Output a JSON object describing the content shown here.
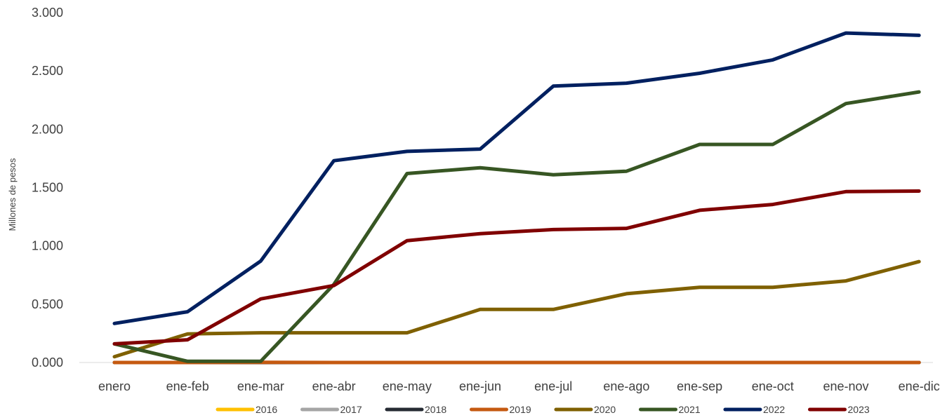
{
  "chart_data": {
    "type": "line",
    "title": "",
    "xlabel": "",
    "ylabel": "Millones de pesos",
    "ylim": [
      0,
      3
    ],
    "yticks": [
      "0.000",
      "0.500",
      "1.000",
      "1.500",
      "2.000",
      "2.500",
      "3.000"
    ],
    "categories": [
      "enero",
      "ene-feb",
      "ene-mar",
      "ene-abr",
      "ene-may",
      "ene-jun",
      "ene-jul",
      "ene-ago",
      "ene-sep",
      "ene-oct",
      "ene-nov",
      "ene-dic"
    ],
    "legend_position": "bottom",
    "grid": false,
    "series": [
      {
        "name": "2016",
        "color": "#FFC000",
        "values": [
          0,
          0,
          0,
          0,
          0,
          0,
          0,
          0,
          0,
          0,
          0,
          0
        ]
      },
      {
        "name": "2017",
        "color": "#A5A5A5",
        "values": [
          0,
          0,
          0,
          0,
          0,
          0,
          0,
          0,
          0,
          0,
          0,
          0
        ]
      },
      {
        "name": "2018",
        "color": "#262B33",
        "values": [
          0,
          0,
          0,
          0,
          0,
          0,
          0,
          0,
          0,
          0,
          0,
          0
        ]
      },
      {
        "name": "2019",
        "color": "#C55A11",
        "values": [
          0,
          0,
          0.002,
          0,
          0,
          0,
          0,
          0,
          0,
          0,
          0,
          0
        ]
      },
      {
        "name": "2020",
        "color": "#7F6000",
        "values": [
          0.05,
          0.245,
          0.255,
          0.255,
          0.255,
          0.455,
          0.455,
          0.59,
          0.645,
          0.645,
          0.7,
          0.865
        ]
      },
      {
        "name": "2021",
        "color": "#375623",
        "values": [
          0.16,
          0.01,
          0.01,
          0.67,
          1.62,
          1.67,
          1.61,
          1.64,
          1.87,
          1.87,
          2.22,
          2.32
        ]
      },
      {
        "name": "2022",
        "color": "#002060",
        "values": [
          0.335,
          0.435,
          0.87,
          1.73,
          1.81,
          1.83,
          2.37,
          2.395,
          2.48,
          2.595,
          2.825,
          2.805
        ]
      },
      {
        "name": "2023",
        "color": "#800000",
        "values": [
          0.16,
          0.195,
          0.545,
          0.66,
          1.045,
          1.105,
          1.14,
          1.15,
          1.305,
          1.355,
          1.465,
          1.47
        ]
      }
    ]
  }
}
